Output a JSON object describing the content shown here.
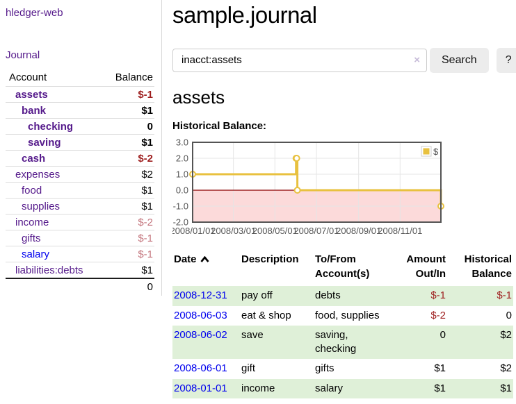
{
  "sidebar": {
    "brand": "hledger-web",
    "nav": {
      "journal": "Journal"
    },
    "accounts": {
      "col_account": "Account",
      "col_balance": "Balance",
      "rows": [
        {
          "account": "assets",
          "depth": 1,
          "bold": true,
          "balance": "$-1",
          "negative": true
        },
        {
          "account": "bank",
          "depth": 2,
          "bold": true,
          "balance": "$1",
          "negative": false
        },
        {
          "account": "checking",
          "depth": 3,
          "bold": true,
          "balance": "0",
          "negative": false
        },
        {
          "account": "saving",
          "depth": 3,
          "bold": true,
          "balance": "$1",
          "negative": false
        },
        {
          "account": "cash",
          "depth": 2,
          "bold": true,
          "balance": "$-2",
          "negative": true
        },
        {
          "account": "expenses",
          "depth": 1,
          "bold": false,
          "balance": "$2",
          "negative": false
        },
        {
          "account": "food",
          "depth": 2,
          "bold": false,
          "balance": "$1",
          "negative": false
        },
        {
          "account": "supplies",
          "depth": 2,
          "bold": false,
          "balance": "$1",
          "negative": false
        },
        {
          "account": "income",
          "depth": 1,
          "bold": false,
          "balance": "$-2",
          "negative": true
        },
        {
          "account": "gifts",
          "depth": 2,
          "bold": false,
          "balance": "$-1",
          "negative": true
        },
        {
          "account": "salary",
          "depth": 2,
          "bold": false,
          "balance": "$-1",
          "negative": true,
          "unvisited": true
        },
        {
          "account": "liabilities:debts",
          "depth": 1,
          "bold": false,
          "balance": "$1",
          "negative": false
        }
      ],
      "total": "0"
    }
  },
  "header": {
    "title": "sample.journal"
  },
  "search": {
    "query": "inacct:assets",
    "clear_label": "×",
    "submit_label": "Search",
    "help_label": "?"
  },
  "account_view": {
    "heading": "assets",
    "chart_title": "Historical Balance:"
  },
  "chart_data": {
    "type": "line",
    "title": "Historical Balance",
    "step": true,
    "xlabel": "",
    "ylabel": "",
    "series": [
      {
        "name": "$",
        "color": "#e8c13f",
        "points": [
          [
            "2008-01-01",
            1
          ],
          [
            "2008-06-01",
            2
          ],
          [
            "2008-06-02",
            2
          ],
          [
            "2008-06-03",
            0
          ],
          [
            "2008-12-31",
            -1
          ]
        ]
      }
    ],
    "xlim": [
      "2008-01-01",
      "2008-12-31"
    ],
    "ylim": [
      -2,
      3
    ],
    "yticks": [
      "3.0",
      "2.0",
      "1.0",
      "0.0",
      "-1.0",
      "-2.0"
    ],
    "xticks": [
      {
        "pos": "2008-01-01",
        "label": "2008/01/01"
      },
      {
        "pos": "2008-03-01",
        "label": "2008/03/01"
      },
      {
        "pos": "2008-05-01",
        "label": "2008/05/01"
      },
      {
        "pos": "2008-07-01",
        "label": "2008/07/01"
      },
      {
        "pos": "2008-09-01",
        "label": "2008/09/01"
      },
      {
        "pos": "2008-11-01",
        "label": "2008/11/01"
      }
    ],
    "legend": {
      "position": "top-right",
      "label": "$"
    },
    "grid": true,
    "colors": {
      "negative_region": "#fcdada",
      "zero_line": "#8b0000",
      "grid": "#e5e5e5",
      "border": "#545454",
      "tick_text": "#545454"
    }
  },
  "register": {
    "columns": {
      "date": "Date",
      "description": "Description",
      "accounts": "To/From Account(s)",
      "amount": "Amount Out/In",
      "balance": "Historical Balance"
    },
    "rows": [
      {
        "date": "2008-12-31",
        "description": "pay off",
        "accounts": "debts",
        "amount": "$-1",
        "amount_negative": true,
        "balance": "$-1",
        "balance_negative": true,
        "striped": true
      },
      {
        "date": "2008-06-03",
        "description": "eat & shop",
        "accounts": "food, supplies",
        "amount": "$-2",
        "amount_negative": true,
        "balance": "0",
        "balance_negative": false,
        "striped": false
      },
      {
        "date": "2008-06-02",
        "description": "save",
        "accounts": "saving, checking",
        "amount": "0",
        "amount_negative": false,
        "balance": "$2",
        "balance_negative": false,
        "striped": true
      },
      {
        "date": "2008-06-01",
        "description": "gift",
        "accounts": "gifts",
        "amount": "$1",
        "amount_negative": false,
        "balance": "$2",
        "balance_negative": false,
        "striped": false
      },
      {
        "date": "2008-01-01",
        "description": "income",
        "accounts": "salary",
        "amount": "$1",
        "amount_negative": false,
        "balance": "$1",
        "balance_negative": false,
        "striped": true
      }
    ]
  }
}
